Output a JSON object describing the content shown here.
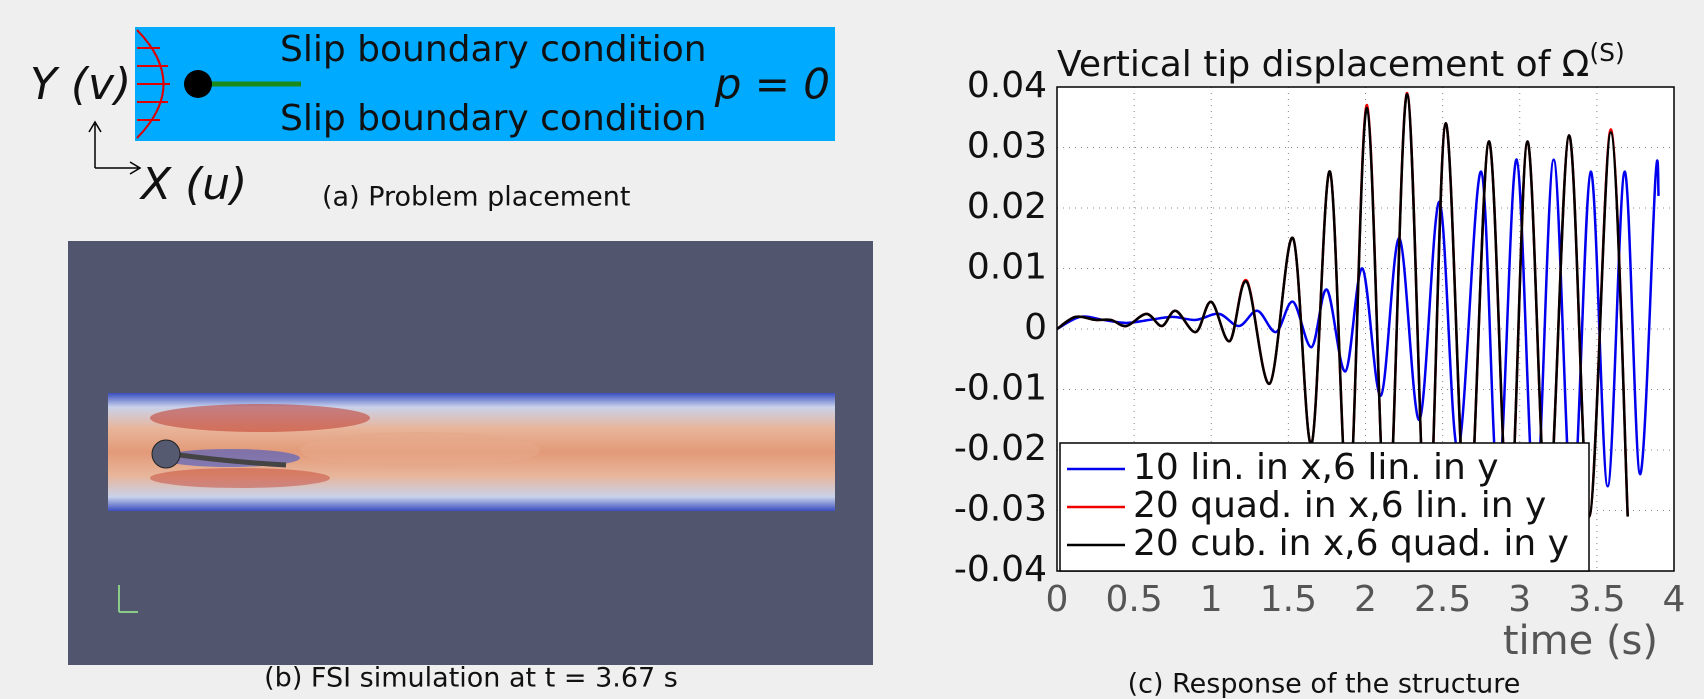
{
  "panel_a": {
    "left_label": "Y (v)",
    "bottom_label": "X (u)",
    "top_wall": "Slip boundary condition",
    "bottom_wall": "Slip boundary condition",
    "outlet": "p = 0",
    "caption": "(a) Problem placement"
  },
  "panel_b": {
    "caption": "(b) FSI simulation at t = 3.67 s"
  },
  "panel_c": {
    "caption": "(c) Response of the structure"
  },
  "chart_data": {
    "type": "line",
    "title": "Vertical tip displacement of Ω",
    "title_superscript": "(S)",
    "x_label": "time (s)",
    "xlim": [
      0,
      4
    ],
    "xticks": [
      0,
      0.5,
      1,
      1.5,
      2,
      2.5,
      3,
      3.5,
      4
    ],
    "ylim": [
      -0.04,
      0.04
    ],
    "yticks": [
      -0.04,
      -0.03,
      -0.02,
      -0.01,
      0,
      0.01,
      0.02,
      0.03,
      0.04
    ],
    "grid": true,
    "legend": "lower left",
    "series": [
      {
        "name": "10 lin. in x,6 lin. in y",
        "color": "#0000ee",
        "x": [
          0,
          0.15,
          0.3,
          0.45,
          0.6,
          0.75,
          0.9,
          1.05,
          1.18,
          1.3,
          1.42,
          1.53,
          1.65,
          1.75,
          1.87,
          1.98,
          2.1,
          2.22,
          2.35,
          2.48,
          2.6,
          2.75,
          2.86,
          2.98,
          3.1,
          3.22,
          3.34,
          3.46,
          3.57,
          3.68,
          3.78,
          3.88,
          3.9
        ],
        "values": [
          0,
          0.002,
          0.0015,
          0.001,
          0.0015,
          0.002,
          0.0015,
          0.0025,
          0.0005,
          0.003,
          -0.0005,
          0.0045,
          -0.003,
          0.0065,
          -0.007,
          0.01,
          -0.011,
          0.015,
          -0.015,
          0.021,
          -0.02,
          0.026,
          -0.026,
          0.028,
          -0.03,
          0.028,
          -0.03,
          0.026,
          -0.026,
          0.026,
          -0.024,
          0.025,
          0.022
        ]
      },
      {
        "name": "20 quad. in x,6 lin. in y",
        "color": "#ee0000",
        "x": [
          0,
          0.12,
          0.25,
          0.35,
          0.45,
          0.58,
          0.68,
          0.77,
          0.9,
          1.0,
          1.12,
          1.23,
          1.38,
          1.53,
          1.65,
          1.77,
          1.89,
          2.01,
          2.14,
          2.27,
          2.4,
          2.52,
          2.66,
          2.8,
          2.93,
          3.05,
          3.18,
          3.32,
          3.45,
          3.59,
          3.7
        ],
        "values": [
          0,
          0.002,
          0.0015,
          0.0015,
          0.0005,
          0.0025,
          0.0005,
          0.003,
          -0.0005,
          0.0045,
          -0.002,
          0.008,
          -0.009,
          0.015,
          -0.019,
          0.026,
          -0.03,
          0.037,
          -0.035,
          0.039,
          -0.037,
          0.034,
          -0.035,
          0.031,
          -0.033,
          0.031,
          -0.032,
          0.032,
          -0.031,
          0.033,
          -0.031
        ]
      },
      {
        "name": "20 cub. in x,6 quad. in y",
        "color": "#000000",
        "x": [
          0,
          0.12,
          0.25,
          0.35,
          0.45,
          0.58,
          0.68,
          0.77,
          0.9,
          1.0,
          1.12,
          1.23,
          1.38,
          1.53,
          1.65,
          1.77,
          1.89,
          2.01,
          2.14,
          2.27,
          2.4,
          2.52,
          2.66,
          2.8,
          2.93,
          3.05,
          3.18,
          3.32,
          3.45,
          3.59,
          3.7
        ],
        "values": [
          0,
          0.002,
          0.0015,
          0.0015,
          0.0005,
          0.0025,
          0.0005,
          0.003,
          -0.0005,
          0.0045,
          -0.002,
          0.0078,
          -0.009,
          0.015,
          -0.019,
          0.026,
          -0.03,
          0.0365,
          -0.035,
          0.0388,
          -0.037,
          0.034,
          -0.035,
          0.031,
          -0.033,
          0.031,
          -0.032,
          0.032,
          -0.031,
          0.0325,
          -0.031
        ]
      }
    ]
  }
}
